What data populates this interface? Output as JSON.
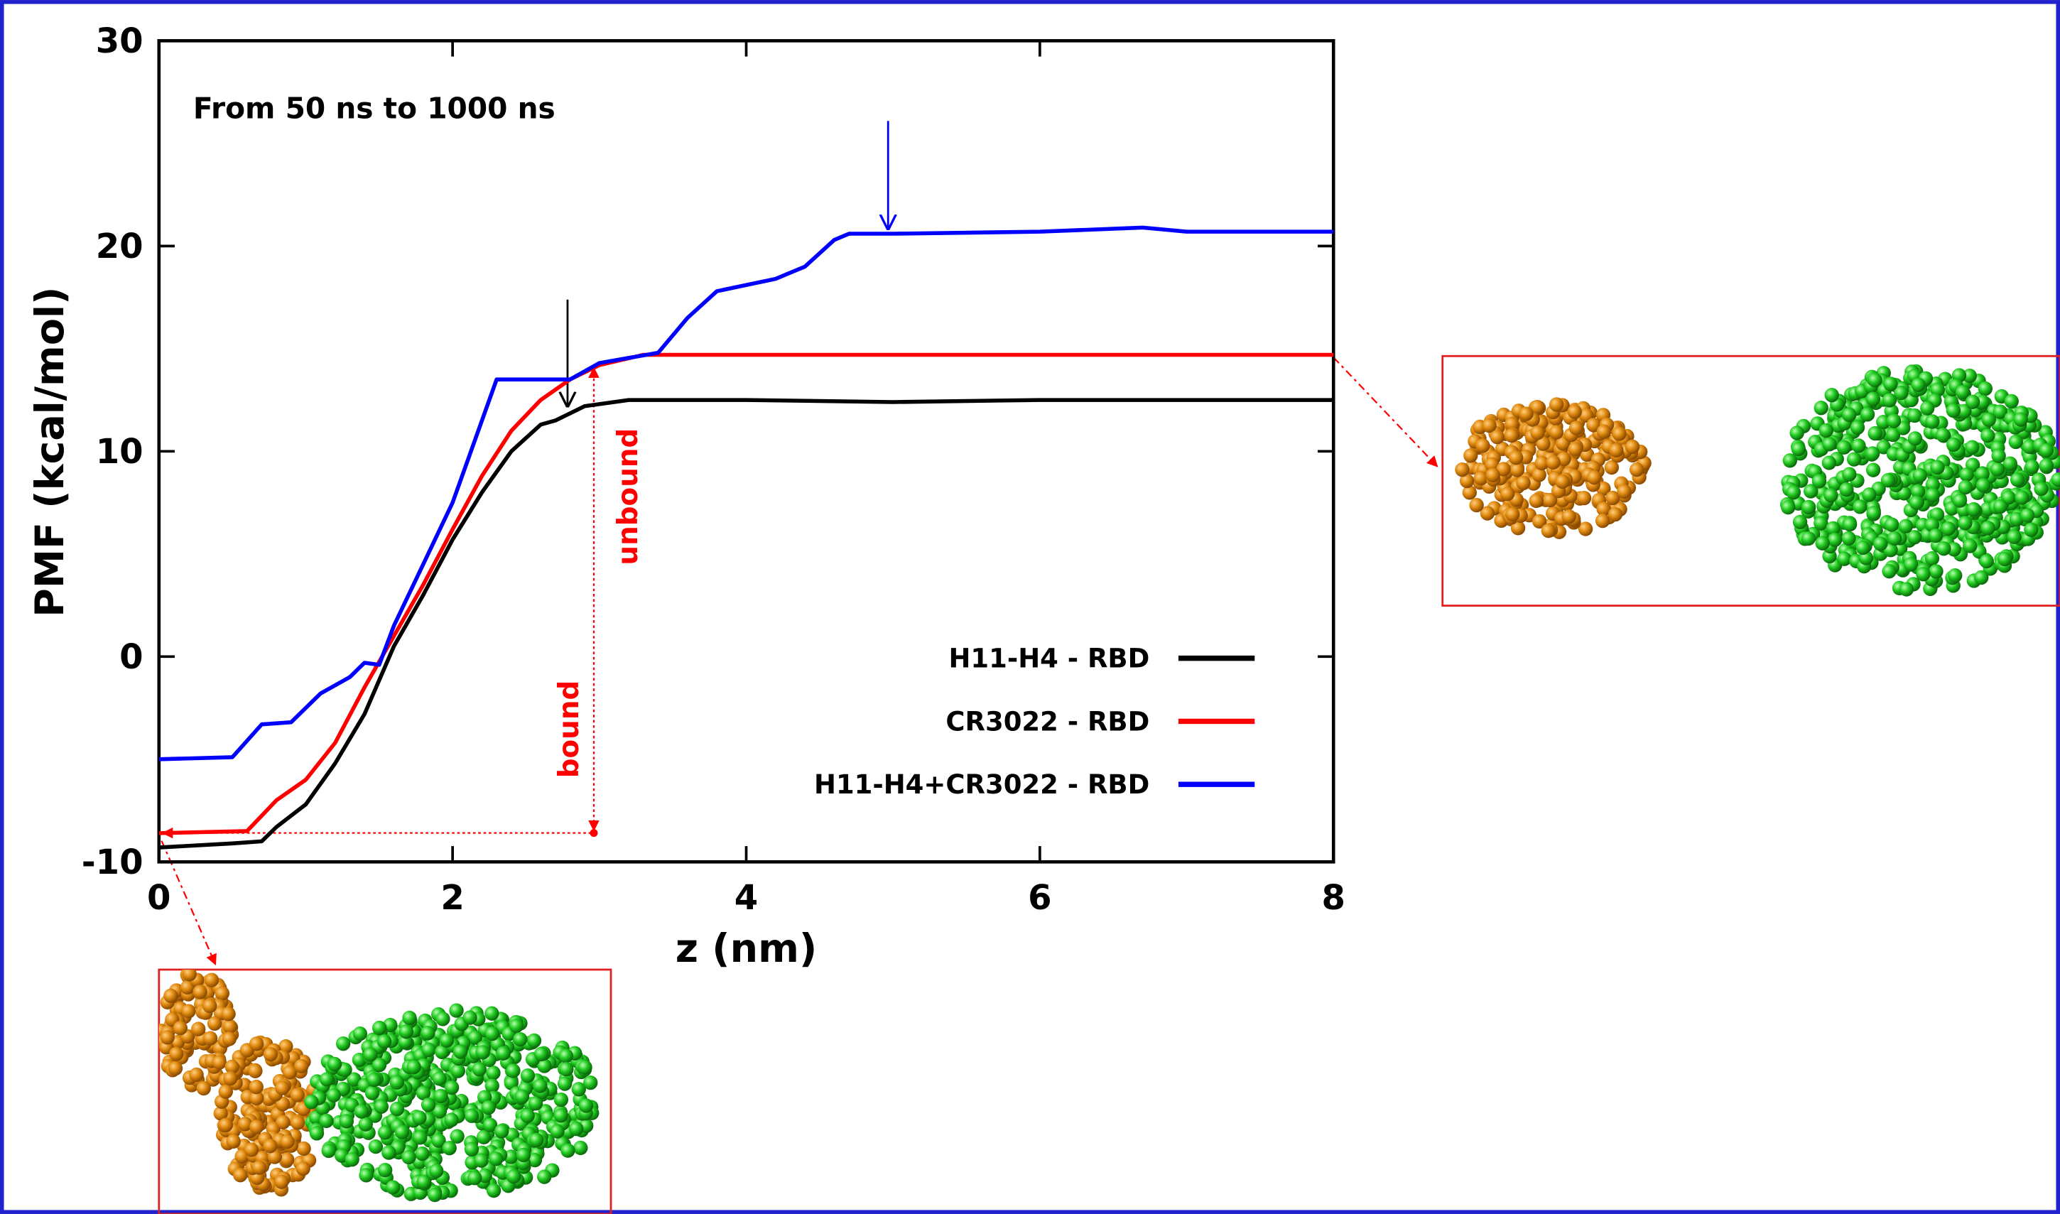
{
  "chart_data": {
    "type": "line",
    "annotation": "From 50 ns to 1000 ns",
    "xlabel": "z (nm)",
    "ylabel": "PMF (kcal/mol)",
    "xlim": [
      0,
      8
    ],
    "xticks": [
      0,
      2,
      4,
      6,
      8
    ],
    "ylim": [
      -10,
      30
    ],
    "yticks": [
      -10,
      0,
      10,
      20,
      30
    ],
    "legend": "lower right",
    "bound_label": "bound",
    "unbound_label": "unbound",
    "series": [
      {
        "name": "H11-H4 - RBD",
        "color": "#000000",
        "x": [
          0,
          0.5,
          0.7,
          0.8,
          1.0,
          1.2,
          1.4,
          1.6,
          1.8,
          2.0,
          2.2,
          2.4,
          2.6,
          2.7,
          2.9,
          3.2,
          4,
          5,
          6,
          7,
          8
        ],
        "values": [
          -9.3,
          -9.1,
          -9.0,
          -8.3,
          -7.2,
          -5.2,
          -2.8,
          0.5,
          3.0,
          5.7,
          8.0,
          10.0,
          11.3,
          11.5,
          12.2,
          12.5,
          12.5,
          12.4,
          12.5,
          12.5,
          12.5
        ]
      },
      {
        "name": "CR3022 - RBD",
        "color": "#ff0000",
        "x": [
          0,
          0.6,
          0.8,
          1.0,
          1.2,
          1.4,
          1.6,
          1.8,
          2.0,
          2.2,
          2.4,
          2.6,
          2.8,
          3.0,
          3.3,
          4,
          6,
          8
        ],
        "values": [
          -8.6,
          -8.5,
          -7.0,
          -6.0,
          -4.2,
          -1.5,
          1.0,
          3.5,
          6.2,
          8.8,
          11.0,
          12.5,
          13.5,
          14.2,
          14.7,
          14.7,
          14.7,
          14.7
        ]
      },
      {
        "name": "H11-H4+CR3022 - RBD",
        "color": "#0000ff",
        "x": [
          0,
          0.5,
          0.7,
          0.9,
          1.1,
          1.3,
          1.4,
          1.5,
          1.6,
          1.8,
          2.0,
          2.2,
          2.3,
          2.8,
          3.0,
          3.4,
          3.6,
          3.8,
          4.2,
          4.4,
          4.6,
          4.7,
          5,
          6,
          6.7,
          7,
          8
        ],
        "values": [
          -5.0,
          -4.9,
          -3.3,
          -3.2,
          -1.8,
          -1.0,
          -0.3,
          -0.4,
          1.5,
          4.5,
          7.5,
          11.5,
          13.5,
          13.5,
          14.3,
          14.8,
          16.5,
          17.8,
          18.4,
          19.0,
          20.3,
          20.6,
          20.6,
          20.7,
          20.9,
          20.7,
          20.7
        ]
      }
    ]
  }
}
